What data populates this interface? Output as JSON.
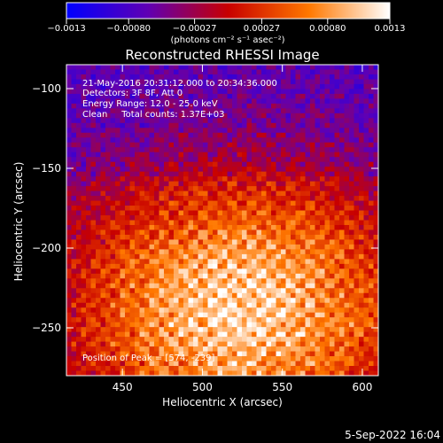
{
  "chart_data": {
    "type": "heatmap",
    "title": "Reconstructed RHESSI Image",
    "xlabel": "Heliocentric X (arcsec)",
    "ylabel": "Heliocentric Y (arcsec)",
    "xlim": [
      415,
      610
    ],
    "ylim": [
      -280,
      -85
    ],
    "x_ticks": [
      450,
      500,
      550,
      600
    ],
    "x_tick_labels": [
      "450",
      "500",
      "550",
      "600"
    ],
    "y_ticks": [
      -100,
      -150,
      -200,
      -250
    ],
    "y_tick_labels": [
      "−100",
      "−150",
      "−200",
      "−250"
    ],
    "colorbar": {
      "min": -0.0013,
      "max": 0.0013,
      "ticks": [
        -0.0013,
        -0.0008,
        -0.00027,
        0.00027,
        0.0008,
        0.0013
      ],
      "tick_labels": [
        "−0.0013",
        "−0.00080",
        "−0.00027",
        "0.00027",
        "0.00080",
        "0.0013"
      ],
      "unit_label": "(photons cm⁻² s⁻¹ asec⁻²)",
      "colors": [
        "#0000ff",
        "#5f00b4",
        "#c80000",
        "#ff7800",
        "#ffffff"
      ]
    },
    "annotations": [
      "21-May-2016 20:31:12.000 to 20:34:36.000",
      "Detectors: 3F 8F, Att 0",
      "Energy Range: 12.0 - 25.0 keV",
      "Clean     Total counts: 1.37E+03"
    ],
    "peak_label": "Position of Peak = [574, -239]",
    "grid": false,
    "legend": "none"
  },
  "footer": {
    "date": "5-Sep-2022 16:04"
  }
}
